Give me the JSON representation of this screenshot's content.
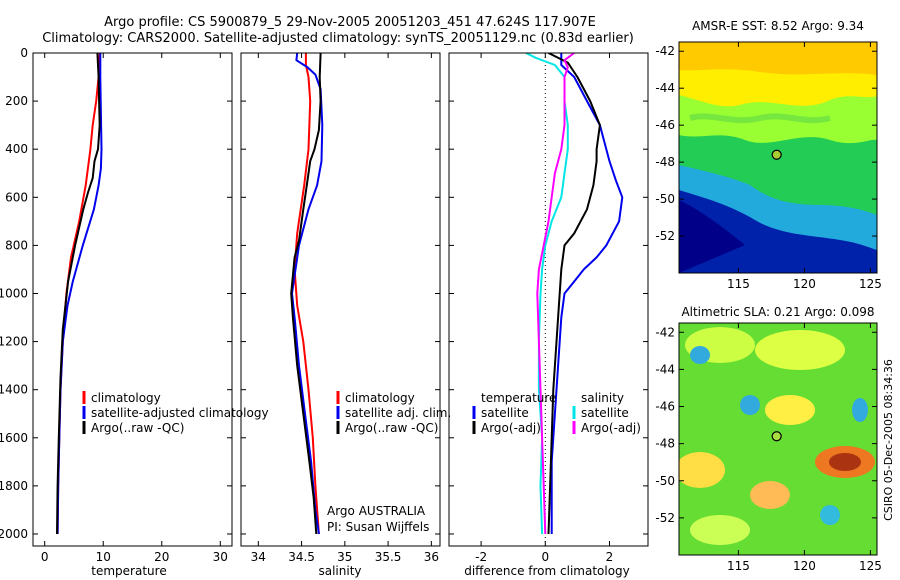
{
  "header": {
    "line1": "Argo profile: CS 5900879_5 29-Nov-2005 20051203_451 47.624S 117.907E",
    "line2": "Climatology: CARS2000. Satellite-adjusted climatology: synTS_20051129.nc (0.83d earlier)"
  },
  "side_stamp": "CSIRO 05-Dec-2005 08:34:36",
  "colors": {
    "red": "#ff0000",
    "blue": "#0000ee",
    "black": "#000000",
    "cyan": "#00e6e6",
    "magenta": "#ff00ff"
  },
  "chart_data": [
    {
      "type": "line",
      "id": "temperature",
      "xlabel": "temperature",
      "xlim": [
        -2,
        32
      ],
      "ylim": [
        0,
        2050
      ],
      "xticks": [
        0,
        10,
        20,
        30
      ],
      "yticks": [
        0,
        200,
        400,
        600,
        800,
        1000,
        1200,
        1400,
        1600,
        1800,
        2000
      ],
      "legend": [
        "climatology",
        "satellite-adjusted climatology",
        "Argo(..raw -QC)"
      ],
      "series": [
        {
          "name": "climatology",
          "color": "red",
          "points": [
            [
              9.4,
              0
            ],
            [
              9.2,
              100
            ],
            [
              8.8,
              200
            ],
            [
              8.2,
              300
            ],
            [
              7.8,
              400
            ],
            [
              7.0,
              550
            ],
            [
              5.9,
              700
            ],
            [
              4.5,
              850
            ],
            [
              3.7,
              1000
            ],
            [
              3.1,
              1200
            ],
            [
              2.7,
              1400
            ],
            [
              2.5,
              1600
            ],
            [
              2.3,
              1800
            ],
            [
              2.2,
              2000
            ]
          ]
        },
        {
          "name": "satellite-adjusted climatology",
          "color": "blue",
          "points": [
            [
              9.5,
              0
            ],
            [
              9.5,
              100
            ],
            [
              9.6,
              250
            ],
            [
              9.7,
              400
            ],
            [
              9.6,
              480
            ],
            [
              9.2,
              550
            ],
            [
              8.4,
              650
            ],
            [
              6.5,
              800
            ],
            [
              4.8,
              950
            ],
            [
              3.9,
              1050
            ],
            [
              3.1,
              1200
            ],
            [
              2.7,
              1400
            ],
            [
              2.5,
              1600
            ],
            [
              2.3,
              1800
            ],
            [
              2.2,
              2000
            ]
          ]
        },
        {
          "name": "Argo(..raw -QC)",
          "color": "black",
          "points": [
            [
              9.0,
              0
            ],
            [
              9.2,
              100
            ],
            [
              9.3,
              200
            ],
            [
              9.4,
              300
            ],
            [
              9.1,
              400
            ],
            [
              8.5,
              450
            ],
            [
              8.2,
              520
            ],
            [
              7.4,
              580
            ],
            [
              6.6,
              650
            ],
            [
              5.2,
              800
            ],
            [
              4.0,
              950
            ],
            [
              3.1,
              1150
            ],
            [
              2.7,
              1350
            ],
            [
              2.4,
              1600
            ],
            [
              2.2,
              1800
            ],
            [
              2.1,
              2000
            ]
          ]
        }
      ]
    },
    {
      "type": "line",
      "id": "salinity",
      "xlabel": "salinity",
      "xlim": [
        33.8,
        36.1
      ],
      "ylim": [
        0,
        2050
      ],
      "xticks": [
        34,
        34.5,
        35,
        35.5,
        36
      ],
      "legend": [
        "climatology",
        "satellite adj. clim.",
        "Argo(..raw -QC)"
      ],
      "annotations": [
        "Argo AUSTRALIA",
        "PI: Susan Wijffels"
      ],
      "series": [
        {
          "name": "climatology",
          "color": "red",
          "points": [
            [
              34.55,
              0
            ],
            [
              34.55,
              50
            ],
            [
              34.58,
              100
            ],
            [
              34.6,
              200
            ],
            [
              34.58,
              400
            ],
            [
              34.53,
              550
            ],
            [
              34.45,
              750
            ],
            [
              34.42,
              900
            ],
            [
              34.45,
              1050
            ],
            [
              34.52,
              1200
            ],
            [
              34.58,
              1400
            ],
            [
              34.63,
              1600
            ],
            [
              34.66,
              1800
            ],
            [
              34.7,
              2000
            ]
          ]
        },
        {
          "name": "satellite adj. clim.",
          "color": "blue",
          "points": [
            [
              34.45,
              0
            ],
            [
              34.44,
              30
            ],
            [
              34.57,
              60
            ],
            [
              34.66,
              90
            ],
            [
              34.72,
              150
            ],
            [
              34.74,
              300
            ],
            [
              34.73,
              450
            ],
            [
              34.68,
              550
            ],
            [
              34.58,
              650
            ],
            [
              34.47,
              800
            ],
            [
              34.39,
              1000
            ],
            [
              34.42,
              1100
            ],
            [
              34.47,
              1300
            ],
            [
              34.54,
              1500
            ],
            [
              34.61,
              1700
            ],
            [
              34.66,
              1900
            ],
            [
              34.7,
              2000
            ]
          ]
        },
        {
          "name": "Argo(..raw -QC)",
          "color": "black",
          "points": [
            [
              34.72,
              0
            ],
            [
              34.71,
              100
            ],
            [
              34.72,
              200
            ],
            [
              34.7,
              320
            ],
            [
              34.65,
              400
            ],
            [
              34.6,
              450
            ],
            [
              34.56,
              550
            ],
            [
              34.52,
              650
            ],
            [
              34.47,
              780
            ],
            [
              34.42,
              850
            ],
            [
              34.38,
              1000
            ],
            [
              34.4,
              1100
            ],
            [
              34.45,
              1300
            ],
            [
              34.52,
              1500
            ],
            [
              34.59,
              1700
            ],
            [
              34.64,
              1850
            ],
            [
              34.67,
              2000
            ]
          ]
        }
      ]
    },
    {
      "type": "line",
      "id": "difference",
      "xlabel": "difference from climatology",
      "xlim": [
        -3,
        3.2
      ],
      "ylim": [
        0,
        2050
      ],
      "xticks": [
        -2,
        0,
        2
      ],
      "legend_temperature": {
        "title": "temperature",
        "entries": [
          "satellite",
          "Argo(-adj)"
        ]
      },
      "legend_salinity": {
        "title": "salinity",
        "entries": [
          "satellite",
          "Argo(-adj)"
        ]
      },
      "series": [
        {
          "name": "temperature satellite",
          "color": "blue",
          "points": [
            [
              0.5,
              0
            ],
            [
              0.5,
              50
            ],
            [
              0.9,
              100
            ],
            [
              1.3,
              200
            ],
            [
              1.7,
              300
            ],
            [
              1.9,
              400
            ],
            [
              2.0,
              450
            ],
            [
              2.2,
              530
            ],
            [
              2.4,
              600
            ],
            [
              2.3,
              700
            ],
            [
              1.9,
              800
            ],
            [
              1.6,
              850
            ],
            [
              1.2,
              900
            ],
            [
              0.9,
              950
            ],
            [
              0.6,
              1000
            ],
            [
              0.5,
              1100
            ],
            [
              0.4,
              1300
            ],
            [
              0.3,
              1500
            ],
            [
              0.2,
              1700
            ],
            [
              0.2,
              2000
            ]
          ]
        },
        {
          "name": "temperature Argo(-adj)",
          "color": "black",
          "points": [
            [
              0.1,
              0
            ],
            [
              0.7,
              40
            ],
            [
              1.0,
              100
            ],
            [
              1.4,
              200
            ],
            [
              1.7,
              300
            ],
            [
              1.6,
              400
            ],
            [
              1.6,
              450
            ],
            [
              1.5,
              550
            ],
            [
              1.3,
              650
            ],
            [
              0.9,
              750
            ],
            [
              0.6,
              800
            ],
            [
              0.5,
              900
            ],
            [
              0.45,
              1000
            ],
            [
              0.35,
              1200
            ],
            [
              0.25,
              1400
            ],
            [
              0.2,
              1600
            ],
            [
              0.15,
              1800
            ],
            [
              0.1,
              2000
            ]
          ]
        },
        {
          "name": "salinity satellite",
          "color": "cyan",
          "points": [
            [
              -0.6,
              0
            ],
            [
              -0.3,
              20
            ],
            [
              0.3,
              50
            ],
            [
              0.6,
              100
            ],
            [
              0.6,
              200
            ],
            [
              0.7,
              300
            ],
            [
              0.7,
              400
            ],
            [
              0.6,
              500
            ],
            [
              0.5,
              600
            ],
            [
              0.2,
              700
            ],
            [
              0.0,
              800
            ],
            [
              -0.1,
              900
            ],
            [
              -0.15,
              1000
            ],
            [
              -0.2,
              1200
            ],
            [
              -0.2,
              1400
            ],
            [
              -0.1,
              1600
            ],
            [
              -0.15,
              1800
            ],
            [
              -0.1,
              2000
            ]
          ]
        },
        {
          "name": "salinity Argo(-adj)",
          "color": "magenta",
          "points": [
            [
              0.9,
              0
            ],
            [
              0.6,
              30
            ],
            [
              0.7,
              60
            ],
            [
              0.6,
              100
            ],
            [
              0.6,
              200
            ],
            [
              0.6,
              300
            ],
            [
              0.5,
              400
            ],
            [
              0.3,
              500
            ],
            [
              0.2,
              600
            ],
            [
              0.1,
              700
            ],
            [
              -0.05,
              800
            ],
            [
              -0.2,
              900
            ],
            [
              -0.25,
              1000
            ],
            [
              -0.2,
              1200
            ],
            [
              -0.15,
              1400
            ],
            [
              -0.1,
              1600
            ],
            [
              -0.05,
              1800
            ],
            [
              0.0,
              2000
            ]
          ]
        }
      ]
    },
    {
      "type": "heatmap",
      "id": "sst_map",
      "title": "AMSR-E SST: 8.52 Argo: 9.34",
      "xlim": [
        110.5,
        125.5
      ],
      "ylim": [
        -54,
        -41.5
      ],
      "xticks": [
        115,
        120,
        125
      ],
      "yticks": [
        -42,
        -44,
        -46,
        -48,
        -50,
        -52
      ],
      "marker": {
        "lon": 117.9,
        "lat": -47.6
      }
    },
    {
      "type": "heatmap",
      "id": "sla_map",
      "title": "Altimetric SLA: 0.21 Argo: 0.098",
      "xlim": [
        110.5,
        125.5
      ],
      "ylim": [
        -54,
        -41.5
      ],
      "xticks": [
        115,
        120,
        125
      ],
      "yticks": [
        -42,
        -44,
        -46,
        -48,
        -50,
        -52
      ],
      "marker": {
        "lon": 117.9,
        "lat": -47.6
      }
    }
  ]
}
